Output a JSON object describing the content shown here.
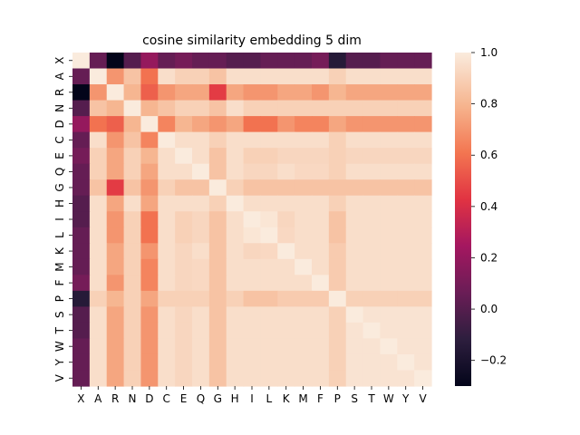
{
  "chart_data": {
    "type": "heatmap",
    "title": "cosine similarity embedding 5 dim",
    "xlabel": "",
    "ylabel": "",
    "labels": [
      "X",
      "A",
      "R",
      "N",
      "D",
      "C",
      "E",
      "Q",
      "G",
      "H",
      "I",
      "L",
      "K",
      "M",
      "F",
      "P",
      "S",
      "T",
      "W",
      "Y",
      "V"
    ],
    "colorbar": {
      "range": [
        -0.3,
        1.0
      ],
      "ticks": [
        1.0,
        0.8,
        0.6,
        0.4,
        0.2,
        0.0,
        -0.2
      ],
      "tick_labels": [
        "1.0",
        "0.8",
        "0.6",
        "0.4",
        "0.2",
        "0.0",
        "−0.2"
      ]
    },
    "colormap": "rocket",
    "matrix": [
      [
        1.0,
        0.05,
        -0.3,
        0.0,
        0.2,
        0.05,
        0.1,
        0.05,
        0.05,
        0.0,
        0.0,
        0.05,
        0.05,
        0.05,
        0.1,
        -0.15,
        0.0,
        0.0,
        0.05,
        0.05,
        0.05
      ],
      [
        0.05,
        1.0,
        0.7,
        0.85,
        0.6,
        0.95,
        0.9,
        0.9,
        0.85,
        0.95,
        0.95,
        0.95,
        0.95,
        0.95,
        0.95,
        0.9,
        0.95,
        0.95,
        0.95,
        0.95,
        0.95
      ],
      [
        -0.3,
        0.7,
        1.0,
        0.8,
        0.55,
        0.7,
        0.75,
        0.75,
        0.45,
        0.75,
        0.7,
        0.7,
        0.75,
        0.75,
        0.7,
        0.8,
        0.75,
        0.75,
        0.75,
        0.75,
        0.75
      ],
      [
        0.0,
        0.85,
        0.8,
        1.0,
        0.8,
        0.85,
        0.9,
        0.9,
        0.85,
        0.95,
        0.9,
        0.9,
        0.9,
        0.9,
        0.9,
        0.9,
        0.9,
        0.9,
        0.9,
        0.9,
        0.9
      ],
      [
        0.2,
        0.6,
        0.55,
        0.8,
        1.0,
        0.65,
        0.8,
        0.75,
        0.7,
        0.75,
        0.6,
        0.6,
        0.7,
        0.65,
        0.65,
        0.75,
        0.7,
        0.7,
        0.7,
        0.7,
        0.7
      ],
      [
        0.05,
        0.95,
        0.7,
        0.85,
        0.65,
        1.0,
        0.95,
        0.95,
        0.9,
        0.95,
        0.95,
        0.95,
        0.95,
        0.95,
        0.95,
        0.9,
        0.95,
        0.95,
        0.95,
        0.95,
        0.95
      ],
      [
        0.1,
        0.9,
        0.75,
        0.9,
        0.8,
        0.95,
        1.0,
        0.95,
        0.85,
        0.95,
        0.9,
        0.9,
        0.92,
        0.92,
        0.92,
        0.9,
        0.92,
        0.92,
        0.92,
        0.92,
        0.92
      ],
      [
        0.05,
        0.9,
        0.75,
        0.9,
        0.75,
        0.95,
        0.95,
        1.0,
        0.85,
        0.95,
        0.92,
        0.92,
        0.95,
        0.93,
        0.93,
        0.9,
        0.95,
        0.95,
        0.95,
        0.95,
        0.95
      ],
      [
        0.05,
        0.85,
        0.45,
        0.85,
        0.7,
        0.9,
        0.85,
        0.85,
        1.0,
        0.9,
        0.85,
        0.85,
        0.85,
        0.85,
        0.85,
        0.85,
        0.85,
        0.85,
        0.85,
        0.85,
        0.85
      ],
      [
        0.0,
        0.95,
        0.75,
        0.95,
        0.75,
        0.95,
        0.95,
        0.95,
        0.9,
        1.0,
        0.95,
        0.95,
        0.95,
        0.95,
        0.95,
        0.9,
        0.95,
        0.95,
        0.95,
        0.95,
        0.95
      ],
      [
        0.0,
        0.95,
        0.7,
        0.9,
        0.6,
        0.95,
        0.9,
        0.92,
        0.85,
        0.95,
        1.0,
        0.98,
        0.92,
        0.95,
        0.95,
        0.85,
        0.95,
        0.95,
        0.95,
        0.95,
        0.95
      ],
      [
        0.05,
        0.95,
        0.7,
        0.9,
        0.6,
        0.95,
        0.9,
        0.92,
        0.85,
        0.95,
        0.98,
        1.0,
        0.93,
        0.95,
        0.95,
        0.85,
        0.95,
        0.95,
        0.95,
        0.95,
        0.95
      ],
      [
        0.05,
        0.95,
        0.75,
        0.9,
        0.7,
        0.95,
        0.92,
        0.95,
        0.85,
        0.95,
        0.92,
        0.93,
        1.0,
        0.95,
        0.95,
        0.88,
        0.95,
        0.95,
        0.95,
        0.95,
        0.95
      ],
      [
        0.05,
        0.95,
        0.75,
        0.9,
        0.65,
        0.95,
        0.92,
        0.93,
        0.85,
        0.95,
        0.95,
        0.95,
        0.95,
        1.0,
        0.95,
        0.88,
        0.95,
        0.95,
        0.95,
        0.95,
        0.95
      ],
      [
        0.1,
        0.95,
        0.7,
        0.9,
        0.65,
        0.95,
        0.92,
        0.93,
        0.85,
        0.95,
        0.95,
        0.95,
        0.95,
        0.95,
        1.0,
        0.88,
        0.95,
        0.95,
        0.95,
        0.95,
        0.95
      ],
      [
        -0.15,
        0.9,
        0.8,
        0.9,
        0.75,
        0.9,
        0.9,
        0.9,
        0.85,
        0.9,
        0.85,
        0.85,
        0.88,
        0.88,
        0.88,
        1.0,
        0.9,
        0.9,
        0.9,
        0.9,
        0.9
      ],
      [
        0.0,
        0.95,
        0.75,
        0.9,
        0.7,
        0.95,
        0.92,
        0.95,
        0.85,
        0.95,
        0.95,
        0.95,
        0.95,
        0.95,
        0.95,
        0.9,
        1.0,
        0.97,
        0.97,
        0.97,
        0.97
      ],
      [
        0.0,
        0.95,
        0.75,
        0.9,
        0.7,
        0.95,
        0.92,
        0.95,
        0.85,
        0.95,
        0.95,
        0.95,
        0.95,
        0.95,
        0.95,
        0.9,
        0.97,
        1.0,
        0.97,
        0.97,
        0.97
      ],
      [
        0.05,
        0.95,
        0.75,
        0.9,
        0.7,
        0.95,
        0.92,
        0.95,
        0.85,
        0.95,
        0.95,
        0.95,
        0.95,
        0.95,
        0.95,
        0.9,
        0.97,
        0.97,
        1.0,
        0.97,
        0.97
      ],
      [
        0.05,
        0.95,
        0.75,
        0.9,
        0.7,
        0.95,
        0.92,
        0.95,
        0.85,
        0.95,
        0.95,
        0.95,
        0.95,
        0.95,
        0.95,
        0.9,
        0.97,
        0.97,
        0.97,
        1.0,
        0.97
      ],
      [
        0.05,
        0.95,
        0.75,
        0.9,
        0.7,
        0.95,
        0.92,
        0.95,
        0.85,
        0.95,
        0.95,
        0.95,
        0.95,
        0.95,
        0.95,
        0.9,
        0.97,
        0.97,
        0.97,
        0.97,
        1.0
      ]
    ]
  }
}
